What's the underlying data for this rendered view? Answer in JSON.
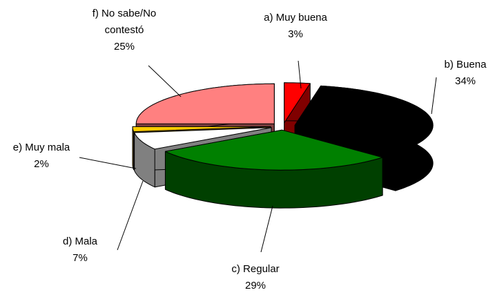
{
  "chart_data": {
    "type": "pie3d",
    "categories": [
      "a) Muy buena",
      "b) Buena",
      "c) Regular",
      "d) Mala",
      "e) Muy mala",
      "f) No sabe/No contestó"
    ],
    "values": [
      3,
      34,
      29,
      7,
      2,
      25
    ],
    "value_labels": [
      "3%",
      "34%",
      "29%",
      "7%",
      "2%",
      "25%"
    ],
    "colors": [
      "#ff0000",
      "#000000",
      "#008000",
      "#ffffff",
      "#ffcc00",
      "#ff8080"
    ]
  }
}
